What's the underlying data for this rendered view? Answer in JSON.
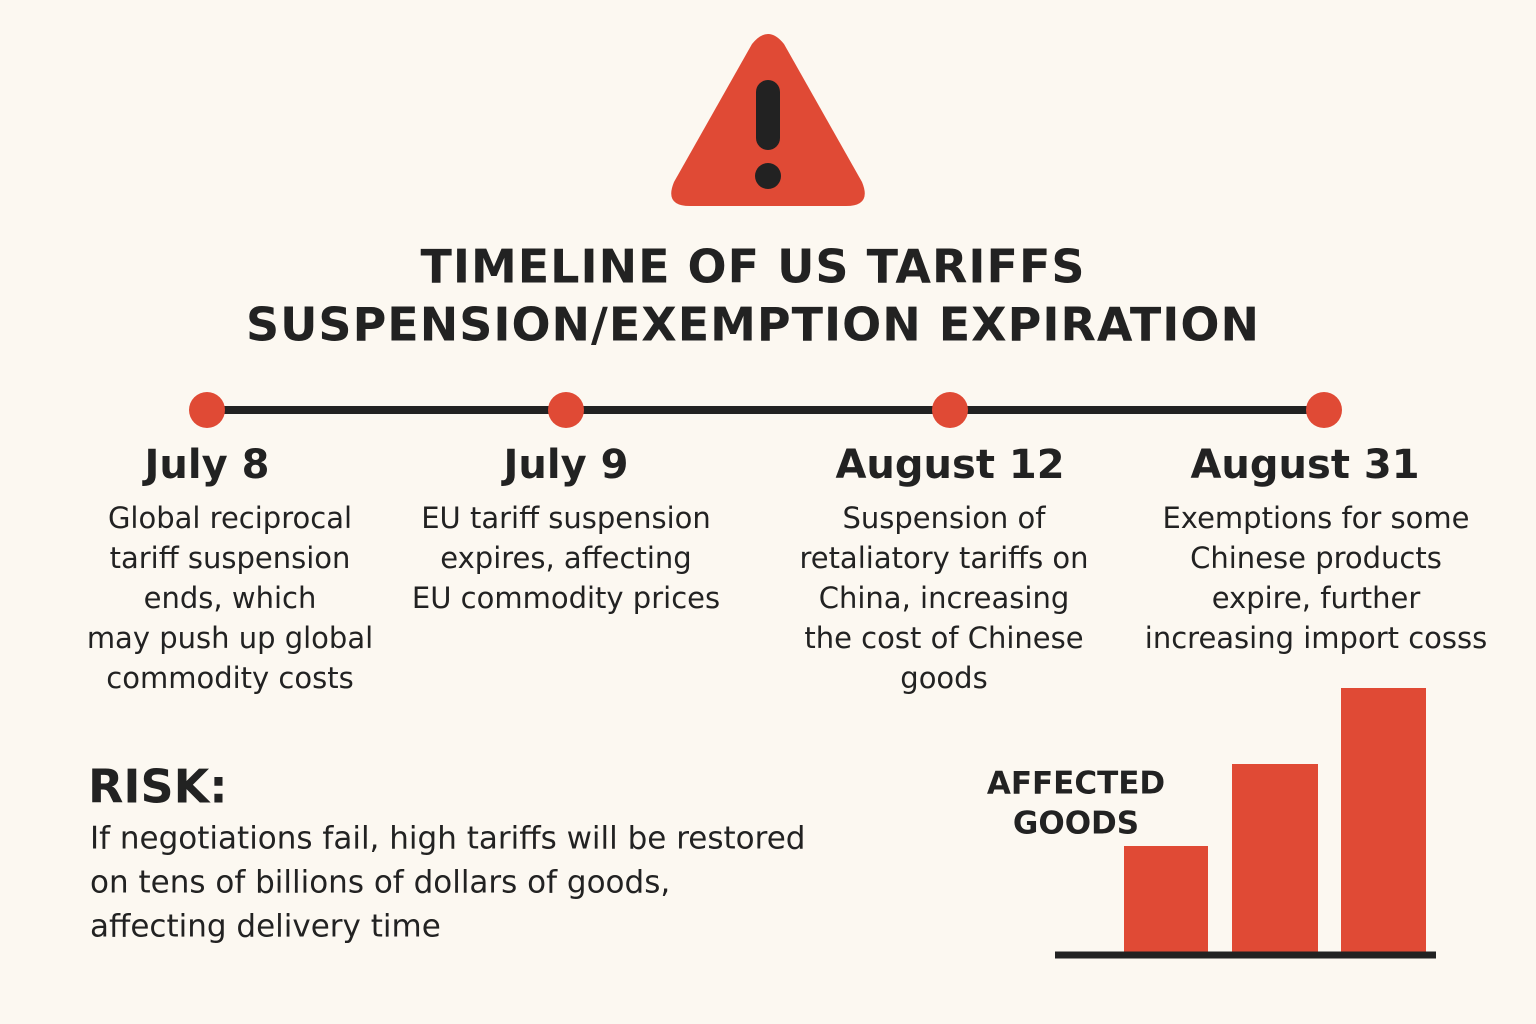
{
  "header": {
    "title_lines": [
      "TIMELINE OF US TARIFFS",
      "SUSPENSION/EXEMPTION EXPIRATION"
    ]
  },
  "timeline": [
    {
      "date": "July 8",
      "description": [
        "Global reciprocal",
        "tariff suspension",
        "ends, which",
        "may push up global",
        "commodity costs"
      ]
    },
    {
      "date": "July 9",
      "description": [
        "EU tariff suspension",
        "expires, affecting",
        "EU commodity prices"
      ]
    },
    {
      "date": "August 12",
      "description": [
        "Suspension of",
        "retaliatory tariffs on",
        "China, increasing",
        "the cost of Chinese",
        "goods"
      ]
    },
    {
      "date": "August 31",
      "description": [
        "Exemptions for some",
        "Chinese products",
        "expire, further",
        "increasing import cosss"
      ]
    }
  ],
  "risk": {
    "heading": "RISK:",
    "lines": [
      "If negotiations fail, high tariffs will be restored",
      "on tens of billions of dollars of goods,",
      "affecting delivery time"
    ]
  },
  "affected_goods": {
    "label_lines": [
      "AFFECTED",
      "GOODS"
    ]
  }
}
